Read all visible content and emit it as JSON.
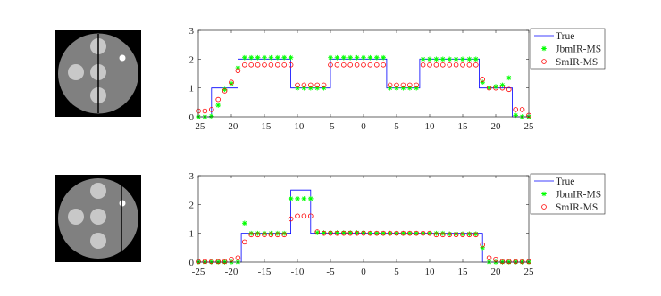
{
  "chart_data": [
    {
      "type": "line",
      "x": [
        -25,
        -24,
        -23,
        -22,
        -21,
        -20,
        -19,
        -18,
        -17,
        -16,
        -15,
        -14,
        -13,
        -12,
        -11,
        -10,
        -9,
        -8,
        -7,
        -6,
        -5,
        -4,
        -3,
        -2,
        -1,
        0,
        1,
        2,
        3,
        4,
        5,
        6,
        7,
        8,
        9,
        10,
        11,
        12,
        13,
        14,
        15,
        16,
        17,
        18,
        19,
        20,
        21,
        22,
        23,
        24,
        25
      ],
      "series": [
        {
          "name": "True",
          "color": "#0000ff",
          "style": "line",
          "x": [
            -25,
            -23,
            -23,
            -19,
            -19,
            -11,
            -11,
            -5,
            -5,
            3.5,
            3.5,
            8.5,
            8.5,
            17.5,
            17.5,
            22.5,
            22.5,
            25
          ],
          "values": [
            0,
            0,
            1,
            1,
            2,
            2,
            1,
            1,
            2,
            2,
            1,
            1,
            2,
            2,
            1,
            1,
            0,
            0
          ]
        },
        {
          "name": "JbmIR-MS",
          "color": "#00ff00",
          "style": "asterisk",
          "values": [
            0,
            0,
            0.02,
            0.4,
            0.95,
            1.15,
            1.7,
            2.05,
            2.05,
            2.05,
            2.05,
            2.05,
            2.05,
            2.05,
            2.05,
            1,
            1,
            1,
            1,
            1,
            2.05,
            2.05,
            2.05,
            2.05,
            2.05,
            2.05,
            2.05,
            2.05,
            2.05,
            1,
            1,
            1,
            1,
            1,
            2,
            2,
            2,
            2,
            2,
            2,
            2,
            2,
            2,
            1.2,
            1,
            1.05,
            1.1,
            1.35,
            0.05,
            0,
            0
          ]
        },
        {
          "name": "SmIR-MS",
          "color": "#ff0000",
          "style": "circle",
          "values": [
            0.2,
            0.2,
            0.25,
            0.6,
            0.9,
            1.2,
            1.6,
            1.8,
            1.8,
            1.8,
            1.8,
            1.8,
            1.8,
            1.8,
            1.8,
            1.1,
            1.1,
            1.1,
            1.1,
            1.1,
            1.8,
            1.8,
            1.8,
            1.8,
            1.8,
            1.8,
            1.8,
            1.8,
            1.8,
            1.1,
            1.1,
            1.1,
            1.1,
            1.1,
            1.8,
            1.8,
            1.8,
            1.8,
            1.8,
            1.8,
            1.8,
            1.8,
            1.8,
            1.3,
            1,
            1,
            1,
            0.95,
            0.25,
            0.25,
            0.05
          ]
        }
      ],
      "xlim": [
        -25,
        25
      ],
      "xticks": [
        -25,
        -20,
        -15,
        -10,
        -5,
        0,
        5,
        10,
        15,
        20,
        25
      ],
      "ylim": [
        0,
        3
      ],
      "yticks": [
        0,
        1,
        2,
        3
      ]
    },
    {
      "type": "line",
      "x": [
        -25,
        -24,
        -23,
        -22,
        -21,
        -20,
        -19,
        -18,
        -17,
        -16,
        -15,
        -14,
        -13,
        -12,
        -11,
        -10,
        -9,
        -8,
        -7,
        -6,
        -5,
        -4,
        -3,
        -2,
        -1,
        0,
        1,
        2,
        3,
        4,
        5,
        6,
        7,
        8,
        9,
        10,
        11,
        12,
        13,
        14,
        15,
        16,
        17,
        18,
        19,
        20,
        21,
        22,
        23,
        24,
        25
      ],
      "series": [
        {
          "name": "True",
          "color": "#0000ff",
          "style": "line",
          "x": [
            -25,
            -18.5,
            -18.5,
            -11,
            -11,
            -8,
            -8,
            18,
            18,
            25
          ],
          "values": [
            0,
            0,
            1,
            1,
            2.5,
            2.5,
            1,
            1,
            0,
            0
          ]
        },
        {
          "name": "JbmIR-MS",
          "color": "#00ff00",
          "style": "asterisk",
          "values": [
            0,
            0,
            0,
            0,
            0,
            0,
            0,
            1.35,
            1,
            1,
            1,
            1,
            1,
            1,
            2.2,
            2.2,
            2.2,
            2.2,
            1.02,
            1.02,
            1.02,
            1.02,
            1.02,
            1.02,
            1.02,
            1.02,
            1,
            1,
            1,
            1,
            1,
            1,
            1,
            1,
            1,
            1,
            1,
            1,
            0.98,
            0.98,
            0.98,
            0.98,
            0.98,
            0.5,
            0,
            0,
            0,
            0,
            0,
            0,
            0
          ]
        },
        {
          "name": "SmIR-MS",
          "color": "#ff0000",
          "style": "circle",
          "values": [
            0.02,
            0.02,
            0.02,
            0.02,
            0.02,
            0.1,
            0.15,
            0.7,
            0.95,
            0.95,
            0.95,
            0.95,
            0.95,
            0.95,
            1.5,
            1.6,
            1.6,
            1.6,
            1.05,
            1,
            1,
            1,
            1,
            1,
            1,
            1,
            1,
            1,
            1,
            1,
            1,
            1,
            1,
            1,
            1,
            1,
            0.95,
            0.95,
            0.95,
            0.95,
            0.95,
            0.95,
            0.95,
            0.6,
            0.15,
            0.1,
            0.02,
            0.02,
            0.02,
            0.02,
            0.02
          ]
        }
      ],
      "xlim": [
        -25,
        25
      ],
      "xticks": [
        -25,
        -20,
        -15,
        -10,
        -5,
        0,
        5,
        10,
        15,
        20,
        25
      ],
      "ylim": [
        0,
        3
      ],
      "yticks": [
        0,
        1,
        2,
        3
      ]
    }
  ]
}
